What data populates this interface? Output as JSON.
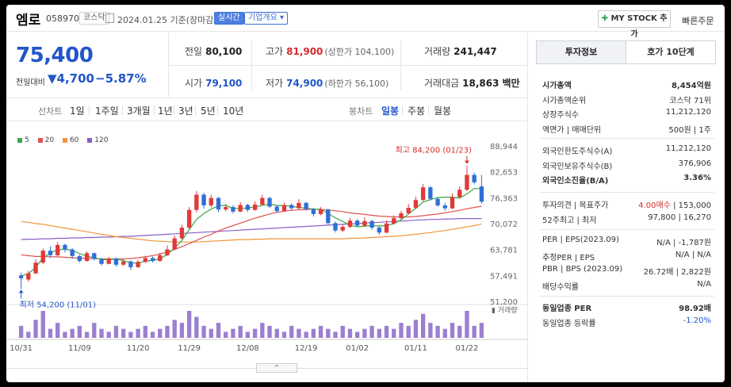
{
  "header": {
    "name": "엠로",
    "code": "058970",
    "market": "코스닥",
    "date_text": "2024.01.25  기준(장마감)",
    "live_label": "실시간",
    "corp_label": "기업개요 ▾",
    "mystock_label": "MY STOCK 추가",
    "quick_order_label": "빠른주문"
  },
  "price": {
    "current": "75,400",
    "diff_label": "전일대비",
    "diff_value": "▼4,700",
    "diff_rate": "−5.87%"
  },
  "summary": {
    "prev_close_label": "전일",
    "prev_close": "80,100",
    "high_label": "고가",
    "high": "81,900",
    "upper_limit": "(상한가 104,100)",
    "volume_label": "거래량",
    "volume": "241,447",
    "open_label": "시가",
    "open": "79,100",
    "low_label": "저가",
    "low": "74,900",
    "lower_limit": "(하한가 56,100)",
    "amount_label": "거래대금",
    "amount": "18,863",
    "amount_unit": "백만"
  },
  "period": {
    "line_label": "선차트",
    "line_options": [
      "1일",
      "1주일",
      "3개월",
      "1년",
      "3년",
      "5년",
      "10년"
    ],
    "candle_label": "봉차트",
    "candle_options": [
      "일봉",
      "주봉",
      "월봉"
    ],
    "active_candle": "일봉"
  },
  "legend": [
    {
      "label": "5",
      "color": "#3aa844"
    },
    {
      "label": "20",
      "color": "#e0524f"
    },
    {
      "label": "60",
      "color": "#f0963a"
    },
    {
      "label": "120",
      "color": "#8a5fc7"
    }
  ],
  "chart_data": {
    "type": "candlestick",
    "y_ticks": [
      "88,944",
      "82,653",
      "76,363",
      "70,072",
      "63,781",
      "57,491",
      "51,200"
    ],
    "ylim": [
      51200,
      88944
    ],
    "x_labels": [
      "10/31",
      "11/09",
      "11/20",
      "11/29",
      "12/08",
      "12/19",
      "01/02",
      "01/11",
      "01/22"
    ],
    "high_annotation": "최고 84,200 (01/23)",
    "low_annotation": "최저 54,200 (11/01)",
    "volume_label": "거래량",
    "up_color": "#e03a3a",
    "down_color": "#2f6fd6",
    "candles": [
      [
        57500,
        56800,
        58200,
        54200
      ],
      [
        56500,
        58000,
        58600,
        56000
      ],
      [
        58000,
        60600,
        61400,
        57800
      ],
      [
        60600,
        63500,
        64000,
        60200
      ],
      [
        63500,
        62400,
        64600,
        61800
      ],
      [
        62400,
        64900,
        65600,
        62000
      ],
      [
        64900,
        63800,
        65200,
        63100
      ],
      [
        63800,
        62200,
        64200,
        61500
      ],
      [
        62200,
        61000,
        62500,
        60600
      ],
      [
        61000,
        62900,
        63400,
        60800
      ],
      [
        62900,
        61500,
        63000,
        61100
      ],
      [
        61500,
        60300,
        61800,
        59900
      ],
      [
        60300,
        61600,
        62000,
        60200
      ],
      [
        61600,
        60100,
        61900,
        59600
      ],
      [
        60100,
        60900,
        61400,
        59800
      ],
      [
        60900,
        59500,
        61100,
        58800
      ],
      [
        59500,
        60800,
        61200,
        59300
      ],
      [
        60800,
        61700,
        62300,
        60500
      ],
      [
        61700,
        61000,
        62100,
        60600
      ],
      [
        61000,
        62400,
        63000,
        60800
      ],
      [
        62400,
        63800,
        64800,
        62200
      ],
      [
        63800,
        66500,
        67200,
        63600
      ],
      [
        66500,
        69100,
        69800,
        66200
      ],
      [
        69100,
        73400,
        74100,
        68800
      ],
      [
        73400,
        77100,
        78000,
        72800
      ],
      [
        77100,
        74500,
        77600,
        73700
      ],
      [
        74500,
        76300,
        77100,
        74000
      ],
      [
        76300,
        73500,
        76600,
        72900
      ],
      [
        73500,
        74100,
        74900,
        73000
      ],
      [
        74100,
        73000,
        74500,
        72500
      ],
      [
        73000,
        74600,
        75300,
        72800
      ],
      [
        74600,
        73400,
        74900,
        72900
      ],
      [
        73400,
        74700,
        75500,
        73200
      ],
      [
        74700,
        76300,
        77100,
        74500
      ],
      [
        76300,
        74200,
        76600,
        73900
      ],
      [
        74200,
        73100,
        74600,
        72800
      ],
      [
        73100,
        74600,
        75200,
        72900
      ],
      [
        74600,
        73800,
        75000,
        73300
      ],
      [
        73800,
        75100,
        76000,
        73500
      ],
      [
        75100,
        73600,
        75400,
        73200
      ],
      [
        73600,
        72400,
        73900,
        71800
      ],
      [
        72400,
        73500,
        74100,
        72100
      ],
      [
        73500,
        70200,
        73700,
        69800
      ],
      [
        70200,
        68400,
        70600,
        67900
      ],
      [
        68400,
        69300,
        69900,
        68000
      ],
      [
        69300,
        70800,
        71500,
        69000
      ],
      [
        70800,
        69600,
        71200,
        69200
      ],
      [
        69600,
        70700,
        71600,
        69300
      ],
      [
        70700,
        69100,
        71000,
        68600
      ],
      [
        69100,
        67900,
        69500,
        67300
      ],
      [
        67900,
        70100,
        70900,
        67700
      ],
      [
        70100,
        71400,
        72100,
        69800
      ],
      [
        71400,
        72600,
        73200,
        71100
      ],
      [
        72600,
        73900,
        74800,
        72300
      ],
      [
        73900,
        75800,
        76600,
        73600
      ],
      [
        75800,
        78900,
        79700,
        75500
      ],
      [
        78900,
        76100,
        79200,
        75700
      ],
      [
        76100,
        74500,
        76400,
        74100
      ],
      [
        74500,
        73800,
        75100,
        73200
      ],
      [
        73800,
        76500,
        77400,
        73500
      ],
      [
        76500,
        78300,
        79100,
        76200
      ],
      [
        78300,
        81900,
        84200,
        78000
      ],
      [
        81900,
        80100,
        82500,
        79600
      ],
      [
        79100,
        75400,
        81900,
        74900
      ]
    ],
    "volumes": [
      4,
      2,
      6,
      9,
      3,
      5,
      2,
      3,
      4,
      2,
      5,
      3,
      2,
      4,
      3,
      2,
      3,
      4,
      2,
      3,
      4,
      6,
      5,
      9,
      7,
      4,
      3,
      5,
      2,
      3,
      4,
      2,
      3,
      5,
      4,
      3,
      2,
      4,
      3,
      2,
      3,
      4,
      3,
      2,
      4,
      3,
      2,
      3,
      4,
      3,
      4,
      3,
      5,
      4,
      6,
      8,
      5,
      4,
      3,
      5,
      4,
      9,
      4,
      5
    ],
    "ma5": [
      57400,
      57900,
      59500,
      61700,
      63000,
      63700,
      63900,
      63600,
      62800,
      62200,
      61800,
      61400,
      61300,
      61500,
      61100,
      60500,
      60500,
      60900,
      61200,
      61500,
      62600,
      64100,
      66000,
      68600,
      71100,
      72500,
      73600,
      74400,
      74500,
      73800,
      73700,
      73900,
      74100,
      74500,
      74800,
      74500,
      74400,
      74300,
      74000,
      73800,
      73600,
      73600,
      72500,
      71500,
      70600,
      69700,
      69300,
      69500,
      69600,
      69500,
      69600,
      70100,
      71000,
      72400,
      73800,
      75300,
      75900,
      76400,
      76500,
      76500,
      76300,
      77300,
      78600,
      78600
    ],
    "ma20": [
      62500,
      62300,
      62100,
      62100,
      62000,
      62000,
      61900,
      61800,
      61700,
      61600,
      61600,
      61500,
      61500,
      61500,
      61500,
      61600,
      61800,
      62000,
      62300,
      62700,
      63200,
      63800,
      64500,
      65200,
      66000,
      66800,
      67500,
      68300,
      69000,
      69600,
      70200,
      70800,
      71400,
      71900,
      72400,
      72800,
      73100,
      73300,
      73400,
      73500,
      73600,
      73500,
      73400,
      73200,
      73000,
      72700,
      72500,
      72300,
      72100,
      71900,
      71800,
      71700,
      71700,
      71700,
      71800,
      72000,
      72200,
      72400,
      72700,
      73000,
      73300,
      73700,
      74000,
      74300
    ],
    "ma60": [
      70600,
      70400,
      70100,
      69900,
      69600,
      69300,
      69000,
      68700,
      68400,
      68100,
      67800,
      67500,
      67200,
      66900,
      66700,
      66500,
      66300,
      66100,
      65900,
      65800,
      65700,
      65600,
      65600,
      65600,
      65600,
      65700,
      65800,
      65900,
      66000,
      66100,
      66200,
      66200,
      66300,
      66300,
      66400,
      66400,
      66400,
      66400,
      66400,
      66400,
      66400,
      66400,
      66400,
      66400,
      66400,
      66500,
      66500,
      66600,
      66700,
      66800,
      66900,
      67000,
      67100,
      67300,
      67500,
      67700,
      67900,
      68200,
      68400,
      68700,
      69000,
      69300,
      69600,
      70000
    ],
    "ma120": [
      66200,
      66300,
      66300,
      66400,
      66400,
      66500,
      66500,
      66600,
      66600,
      66700,
      66700,
      66800,
      66800,
      66900,
      67000,
      67000,
      67100,
      67200,
      67300,
      67400,
      67500,
      67600,
      67700,
      67800,
      67900,
      68000,
      68100,
      68200,
      68300,
      68400,
      68500,
      68600,
      68700,
      68800,
      68900,
      69000,
      69100,
      69200,
      69300,
      69400,
      69500,
      69600,
      69700,
      69800,
      69900,
      70000,
      70100,
      70200,
      70300,
      70400,
      70500,
      70600,
      70700,
      70800,
      70900,
      71000,
      71100,
      71100,
      71200,
      71200,
      71300,
      71300,
      71300,
      71300
    ]
  },
  "side": {
    "tab_invest": "투자정보",
    "tab_orderbook": "호가 10단계",
    "rows1": [
      {
        "k": "시가총액",
        "v": "8,454억원",
        "bold": true
      },
      {
        "k": "시가총액순위",
        "v": "코스닥 71위"
      },
      {
        "k": "상장주식수",
        "v": "11,212,120"
      },
      {
        "k": "액면가 | 매매단위",
        "v": "500원 | 1주"
      }
    ],
    "rows2": [
      {
        "k": "외국인한도주식수(A)",
        "v": "11,212,120"
      },
      {
        "k": "외국인보유주식수(B)",
        "v": "376,906"
      },
      {
        "k": "외국인소진율(B/A)",
        "v": "3.36%",
        "bold": true
      }
    ],
    "rows3": [
      {
        "k": "투자의견 | 목표주가",
        "v": "4.00매수 | 153,000"
      },
      {
        "k": "52주최고 | 최저",
        "v": "97,800 | 16,270"
      }
    ],
    "rows4": [
      {
        "k": "PER | EPS(2023.09)",
        "v": "N/A | -1,787원"
      },
      {
        "k": "추정PER | EPS",
        "v": "N/A | N/A"
      },
      {
        "k": "PBR | BPS (2023.09)",
        "v": "26.72배 | 2,822원"
      },
      {
        "k": "배당수익률",
        "v": "N/A"
      }
    ],
    "rows5": [
      {
        "k": "동일업종 PER",
        "v": "98.92배",
        "bold": true
      },
      {
        "k": "동일업종 등락률",
        "v": "-1.20%"
      }
    ]
  },
  "collapse_label": "^"
}
